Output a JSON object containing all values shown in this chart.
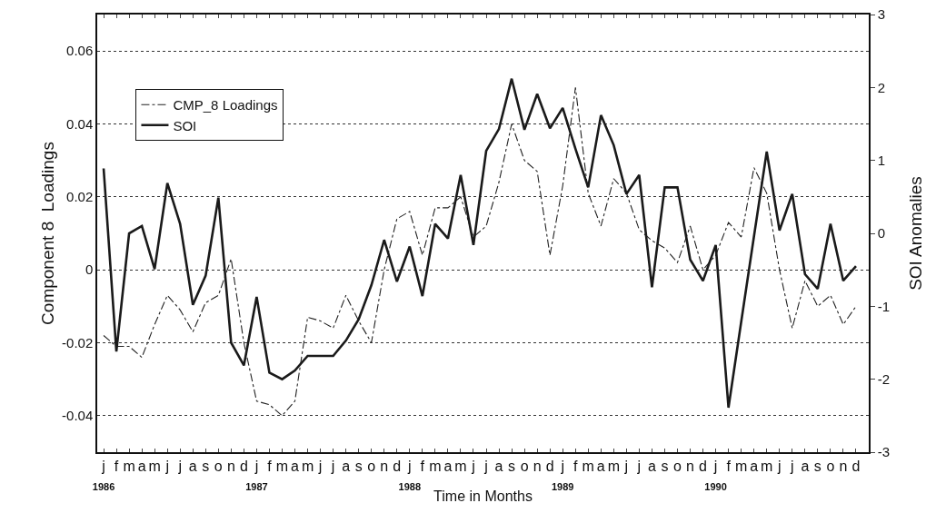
{
  "chart_data": {
    "type": "line",
    "xlabel": "Time in Months",
    "ylabel": "Component 8  Loadings",
    "y2label": "SOI Anomalies",
    "categories": [
      "j\n1986",
      "f",
      "m",
      "a",
      "m",
      "j",
      "j",
      "a",
      "s",
      "o",
      "n",
      "d",
      "j\n1987",
      "f",
      "m",
      "a",
      "m",
      "j",
      "j",
      "a",
      "s",
      "o",
      "n",
      "d",
      "j\n1988",
      "f",
      "m",
      "a",
      "m",
      "j",
      "j",
      "a",
      "s",
      "o",
      "n",
      "d",
      "j\n1989",
      "f",
      "m",
      "a",
      "m",
      "j",
      "j",
      "a",
      "s",
      "o",
      "n",
      "d",
      "j\n1990",
      "f",
      "m",
      "a",
      "m",
      "j",
      "j",
      "a",
      "s",
      "o",
      "n",
      "d"
    ],
    "series": [
      {
        "name": "CMP_8 Loadings",
        "color": "#222222",
        "line_style": "dashdot",
        "values": [
          -0.018,
          -0.021,
          -0.021,
          -0.024,
          -0.015,
          -0.007,
          -0.011,
          -0.017,
          -0.009,
          -0.007,
          0.003,
          -0.02,
          -0.036,
          -0.037,
          -0.04,
          -0.036,
          -0.013,
          -0.014,
          -0.016,
          -0.007,
          -0.014,
          -0.02,
          0.0,
          0.014,
          0.016,
          0.004,
          0.017,
          0.017,
          0.02,
          0.009,
          0.012,
          0.024,
          0.04,
          0.03,
          0.027,
          0.004,
          0.023,
          0.05,
          0.021,
          0.012,
          0.025,
          0.021,
          0.011,
          0.008,
          0.006,
          0.002,
          0.012,
          0.0,
          0.004,
          0.013,
          0.009,
          0.028,
          0.021,
          0.0,
          -0.016,
          -0.003,
          -0.01,
          -0.007,
          -0.015,
          -0.01
        ]
      },
      {
        "name": "SOI",
        "color": "#1a1a1a",
        "line_style": "solid",
        "axis": "y2",
        "values": [
          0.89,
          -1.62,
          0.0,
          0.1,
          -0.49,
          0.69,
          0.13,
          -0.98,
          -0.58,
          0.49,
          -1.5,
          -1.81,
          -0.87,
          -1.91,
          -2.0,
          -1.88,
          -1.68,
          -1.68,
          -1.68,
          -1.47,
          -1.18,
          -0.71,
          -0.09,
          -0.66,
          -0.18,
          -0.86,
          0.13,
          -0.07,
          0.8,
          -0.16,
          1.13,
          1.43,
          2.12,
          1.42,
          1.91,
          1.44,
          1.72,
          1.16,
          0.63,
          1.62,
          1.21,
          0.54,
          0.8,
          -0.74,
          0.63,
          0.63,
          -0.36,
          -0.65,
          -0.16,
          -2.39,
          -1.21,
          -0.04,
          1.12,
          0.04,
          0.54,
          -0.56,
          -0.76,
          0.13,
          -0.65,
          -0.45
        ]
      }
    ],
    "ylim": [
      -0.05,
      0.07
    ],
    "yticks": [
      -0.04,
      -0.02,
      0,
      0.02,
      0.04,
      0.06
    ],
    "y2lim": [
      -3,
      3
    ],
    "y2ticks": [
      -3,
      -2,
      -1,
      0,
      1,
      2,
      3
    ],
    "grid": "y",
    "legend": "top left",
    "marker": "none"
  }
}
